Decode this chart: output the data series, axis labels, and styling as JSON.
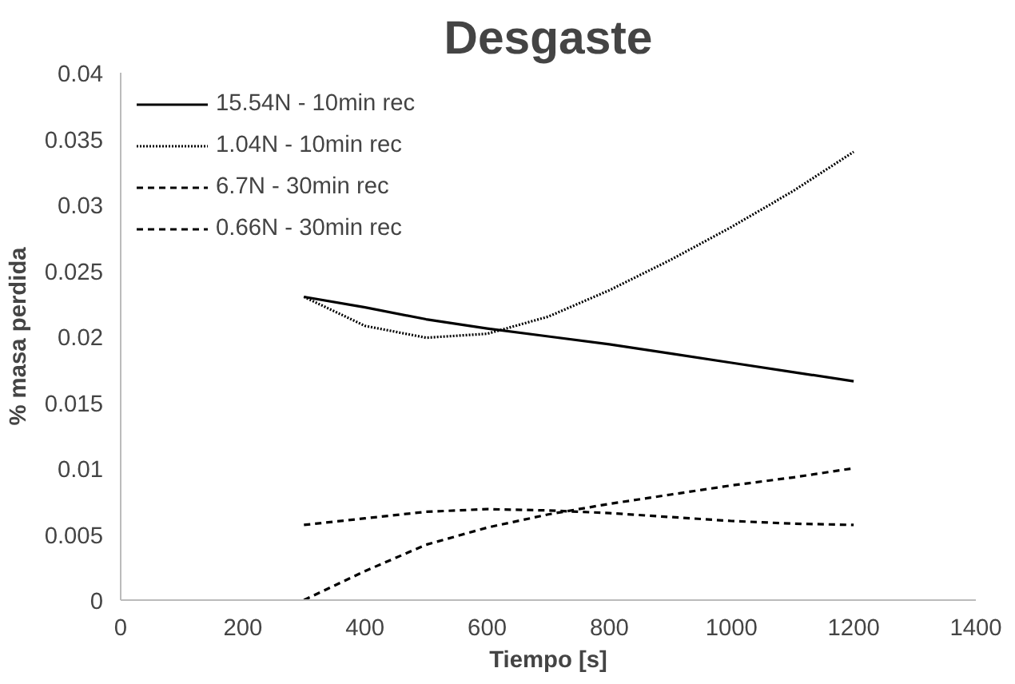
{
  "chart_data": {
    "type": "line",
    "title": "Desgaste",
    "xlabel": "Tiempo [s]",
    "ylabel": "% masa perdida",
    "x": [
      300,
      400,
      500,
      600,
      700,
      800,
      900,
      1000,
      1100,
      1200
    ],
    "series": [
      {
        "name": "15.54N - 10min rec",
        "color": "#000000",
        "line_style": "solid",
        "values": [
          0.023,
          0.0222,
          0.0213,
          0.0206,
          0.02,
          0.0194,
          0.0187,
          0.018,
          0.0173,
          0.0166
        ]
      },
      {
        "name": "1.04N - 10min rec",
        "color": "#000000",
        "line_style": "dotted",
        "values": [
          0.023,
          0.0208,
          0.0199,
          0.0202,
          0.0215,
          0.0235,
          0.0258,
          0.0283,
          0.031,
          0.034
        ]
      },
      {
        "name": "6.7N - 30min rec",
        "color": "#000000",
        "line_style": "dashed",
        "values": [
          0,
          0.0022,
          0.0042,
          0.0055,
          0.0065,
          0.0073,
          0.008,
          0.0087,
          0.0093,
          0.01
        ]
      },
      {
        "name": "0.66N - 30min rec",
        "color": "#000000",
        "line_style": "dashed",
        "values": [
          0.0057,
          0.0062,
          0.0067,
          0.0069,
          0.0068,
          0.0066,
          0.0063,
          0.006,
          0.0058,
          0.0057
        ]
      }
    ],
    "xlim": [
      0,
      1400
    ],
    "xticks": [
      0,
      200,
      400,
      600,
      800,
      1000,
      1200,
      1400
    ],
    "ylim": [
      0,
      0.04
    ],
    "yticks": [
      0,
      0.005,
      0.01,
      0.015,
      0.02,
      0.025,
      0.03,
      0.035,
      0.04
    ],
    "grid": false,
    "legend": "top left",
    "marker": "none"
  }
}
